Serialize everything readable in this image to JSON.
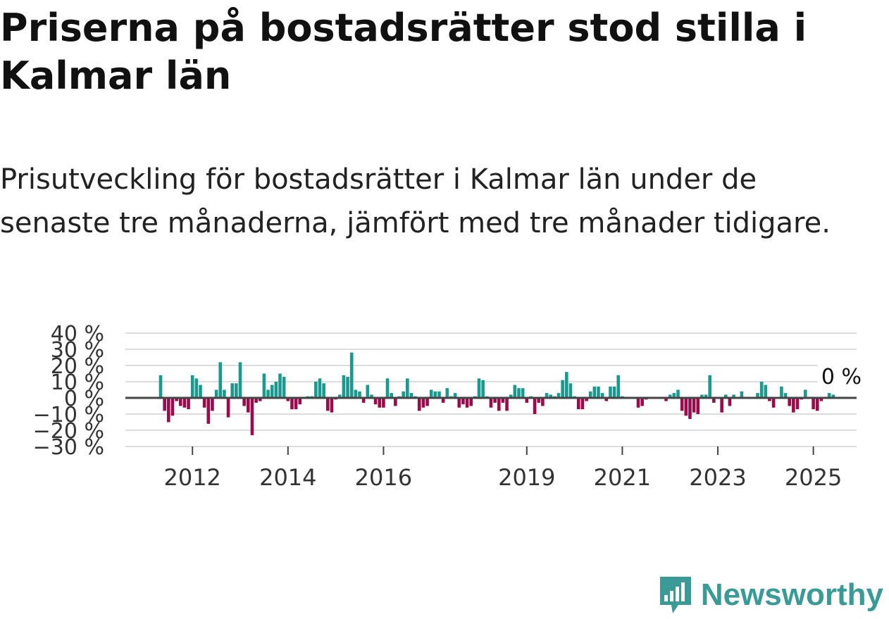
{
  "title": "Priserna på bostadsrätter stod stilla i Kalmar län",
  "subtitle": "Prisutveckling för bostadsrätter i Kalmar län under de senaste tre månaderna, jämfört med tre månader tidigare.",
  "brand": {
    "name": "Newsworthy",
    "color": "#3a9a96",
    "icon": "newsworthy-logo-icon"
  },
  "colors": {
    "positive": "#1a9a8e",
    "negative": "#9b0a4a",
    "zero_line": "#444444",
    "grid": "#dddddd"
  },
  "chart_data": {
    "type": "bar",
    "title": "Priserna på bostadsrätter stod stilla i Kalmar län",
    "xlabel": "",
    "ylabel": "",
    "x_unit": "month",
    "x_start": "2011-05",
    "ylim": [
      -30,
      40
    ],
    "yticks": [
      -30,
      -20,
      -10,
      0,
      10,
      20,
      30,
      40
    ],
    "ytick_labels": [
      "−30 %",
      "−20 %",
      "−10 %",
      "0 %",
      "10 %",
      "20 %",
      "30 %",
      "40 %"
    ],
    "xticks": [
      "2012",
      "2014",
      "2016",
      "2019",
      "2021",
      "2023",
      "2025"
    ],
    "last_value_label": "0 %",
    "grid": true,
    "values": [
      14,
      -8,
      -15,
      -11,
      -2,
      -5,
      -6,
      -7,
      14,
      12,
      8,
      -6,
      -16,
      -8,
      5,
      22,
      5,
      -12,
      9,
      9,
      22,
      -5,
      -9,
      -23,
      -3,
      -2,
      15,
      5,
      8,
      10,
      15,
      13,
      -2,
      -7,
      -7,
      -4,
      0,
      1,
      1,
      10,
      12,
      9,
      -8,
      -9,
      -1,
      2,
      14,
      13,
      28,
      5,
      4,
      -3,
      8,
      2,
      -4,
      -6,
      -6,
      12,
      3,
      -5,
      1,
      4,
      12,
      3,
      1,
      -8,
      -6,
      -5,
      5,
      4,
      4,
      -3,
      6,
      1,
      3,
      -6,
      -4,
      -6,
      -5,
      1,
      12,
      11,
      1,
      -6,
      -3,
      -8,
      -3,
      -8,
      2,
      8,
      6,
      6,
      -3,
      1,
      -10,
      -3,
      -5,
      3,
      2,
      1,
      3,
      11,
      16,
      9,
      1,
      -7,
      -7,
      -2,
      4,
      7,
      7,
      3,
      -2,
      7,
      7,
      14,
      1,
      0,
      0,
      0,
      -6,
      -5,
      -1,
      0,
      0,
      0,
      0,
      -2,
      2,
      3,
      5,
      -8,
      -11,
      -13,
      -9,
      -10,
      2,
      2,
      14,
      -3,
      0,
      -9,
      2,
      -5,
      2,
      0,
      4,
      0,
      0,
      0,
      3,
      10,
      8,
      -2,
      -6,
      0,
      7,
      3,
      -5,
      -9,
      -7,
      -1,
      5,
      0,
      -7,
      -8,
      -2,
      0,
      3,
      2,
      0
    ]
  }
}
